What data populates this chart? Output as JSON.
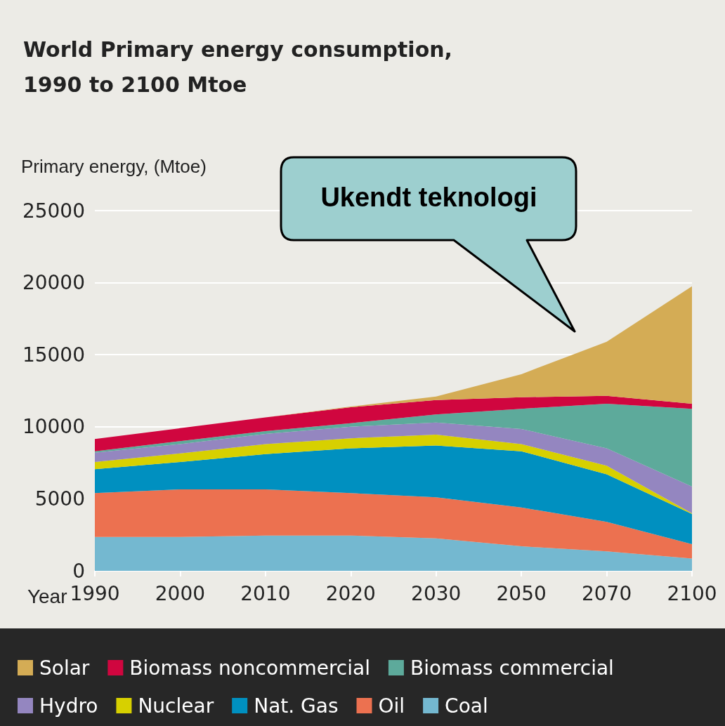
{
  "chart_data": {
    "type": "area",
    "stacked": true,
    "title": "World Primary energy consumption, 1990 to 2100 Mtoe",
    "ylabel": "Primary energy, (Mtoe)",
    "xlabel": "Year",
    "categories": [
      "1990",
      "2000",
      "2010",
      "2020",
      "2030",
      "2050",
      "2070",
      "2100"
    ],
    "ylim": [
      0,
      25000
    ],
    "yticks": [
      0,
      5000,
      10000,
      15000,
      20000,
      25000
    ],
    "grid": "y",
    "legend": "bottom",
    "annotations": [
      "Ukendt teknologi"
    ],
    "series": [
      {
        "name": "Coal",
        "color": "#74b8d0",
        "values": [
          2350,
          2350,
          2450,
          2450,
          2250,
          1700,
          1350,
          850
        ]
      },
      {
        "name": "Oil",
        "color": "#ec7150",
        "values": [
          3050,
          3300,
          3200,
          2950,
          2850,
          2700,
          2050,
          1000
        ]
      },
      {
        "name": "Nat. Gas",
        "color": "#0090c0",
        "values": [
          1650,
          1900,
          2450,
          3100,
          3600,
          3900,
          3300,
          2100
        ]
      },
      {
        "name": "Nuclear",
        "color": "#d7d000",
        "values": [
          500,
          600,
          700,
          700,
          750,
          500,
          600,
          50
        ]
      },
      {
        "name": "Hydro",
        "color": "#9486c0",
        "values": [
          650,
          650,
          700,
          800,
          850,
          1050,
          1200,
          1850
        ]
      },
      {
        "name": "Biomass commercial",
        "color": "#5daa9b",
        "values": [
          100,
          200,
          200,
          250,
          550,
          1400,
          3100,
          5400
        ]
      },
      {
        "name": "Biomass noncommercial",
        "color": "#d0063f",
        "values": [
          850,
          900,
          950,
          1100,
          1000,
          800,
          550,
          350
        ]
      },
      {
        "name": "Solar",
        "color": "#d4ac55",
        "values": [
          0,
          0,
          0,
          50,
          250,
          1600,
          3750,
          8150
        ]
      }
    ]
  }
}
